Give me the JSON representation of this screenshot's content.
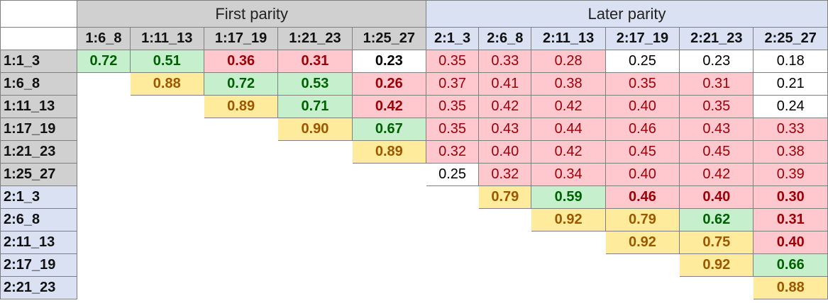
{
  "groups": {
    "first_label": "First parity",
    "later_label": "Later parity"
  },
  "columns": [
    {
      "label": "1:6_8",
      "group": "first"
    },
    {
      "label": "1:11_13",
      "group": "first"
    },
    {
      "label": "1:17_19",
      "group": "first"
    },
    {
      "label": "1:21_23",
      "group": "first"
    },
    {
      "label": "1:25_27",
      "group": "first"
    },
    {
      "label": "2:1_3",
      "group": "later"
    },
    {
      "label": "2:6_8",
      "group": "later"
    },
    {
      "label": "2:11_13",
      "group": "later"
    },
    {
      "label": "2:17_19",
      "group": "later"
    },
    {
      "label": "2:21_23",
      "group": "later"
    },
    {
      "label": "2:25_27",
      "group": "later"
    }
  ],
  "color_scale": {
    "green": "#c6efce",
    "yellow": "#ffeb9c",
    "red": "#ffc7ce",
    "white": "#ffffff"
  },
  "rows": [
    {
      "label": "1:1_3",
      "group": "first",
      "cells": [
        {
          "v": "0.72",
          "c": "green",
          "b": true
        },
        {
          "v": "0.51",
          "c": "green",
          "b": true
        },
        {
          "v": "0.36",
          "c": "red",
          "b": true
        },
        {
          "v": "0.31",
          "c": "red",
          "b": true
        },
        {
          "v": "0.23",
          "c": "white",
          "b": true
        },
        {
          "v": "0.35",
          "c": "red",
          "b": false
        },
        {
          "v": "0.33",
          "c": "red",
          "b": false
        },
        {
          "v": "0.28",
          "c": "red",
          "b": false
        },
        {
          "v": "0.25",
          "c": "white",
          "b": false
        },
        {
          "v": "0.23",
          "c": "white",
          "b": false
        },
        {
          "v": "0.18",
          "c": "white",
          "b": false
        }
      ]
    },
    {
      "label": "1:6_8",
      "group": "first",
      "cells": [
        null,
        {
          "v": "0.88",
          "c": "yellow",
          "b": true
        },
        {
          "v": "0.72",
          "c": "green",
          "b": true
        },
        {
          "v": "0.53",
          "c": "green",
          "b": true
        },
        {
          "v": "0.26",
          "c": "red",
          "b": true
        },
        {
          "v": "0.37",
          "c": "red",
          "b": false
        },
        {
          "v": "0.41",
          "c": "red",
          "b": false
        },
        {
          "v": "0.38",
          "c": "red",
          "b": false
        },
        {
          "v": "0.35",
          "c": "red",
          "b": false
        },
        {
          "v": "0.31",
          "c": "red",
          "b": false
        },
        {
          "v": "0.21",
          "c": "white",
          "b": false
        }
      ]
    },
    {
      "label": "1:11_13",
      "group": "first",
      "cells": [
        null,
        null,
        {
          "v": "0.89",
          "c": "yellow",
          "b": true
        },
        {
          "v": "0.71",
          "c": "green",
          "b": true
        },
        {
          "v": "0.42",
          "c": "red",
          "b": true
        },
        {
          "v": "0.35",
          "c": "red",
          "b": false
        },
        {
          "v": "0.42",
          "c": "red",
          "b": false
        },
        {
          "v": "0.42",
          "c": "red",
          "b": false
        },
        {
          "v": "0.40",
          "c": "red",
          "b": false
        },
        {
          "v": "0.35",
          "c": "red",
          "b": false
        },
        {
          "v": "0.24",
          "c": "white",
          "b": false
        }
      ]
    },
    {
      "label": "1:17_19",
      "group": "first",
      "cells": [
        null,
        null,
        null,
        {
          "v": "0.90",
          "c": "yellow",
          "b": true
        },
        {
          "v": "0.67",
          "c": "green",
          "b": true
        },
        {
          "v": "0.35",
          "c": "red",
          "b": false
        },
        {
          "v": "0.43",
          "c": "red",
          "b": false
        },
        {
          "v": "0.44",
          "c": "red",
          "b": false
        },
        {
          "v": "0.46",
          "c": "red",
          "b": false
        },
        {
          "v": "0.43",
          "c": "red",
          "b": false
        },
        {
          "v": "0.33",
          "c": "red",
          "b": false
        }
      ]
    },
    {
      "label": "1:21_23",
      "group": "first",
      "cells": [
        null,
        null,
        null,
        null,
        {
          "v": "0.89",
          "c": "yellow",
          "b": true
        },
        {
          "v": "0.32",
          "c": "red",
          "b": false
        },
        {
          "v": "0.40",
          "c": "red",
          "b": false
        },
        {
          "v": "0.42",
          "c": "red",
          "b": false
        },
        {
          "v": "0.45",
          "c": "red",
          "b": false
        },
        {
          "v": "0.45",
          "c": "red",
          "b": false
        },
        {
          "v": "0.38",
          "c": "red",
          "b": false
        }
      ]
    },
    {
      "label": "1:25_27",
      "group": "first",
      "cells": [
        null,
        null,
        null,
        null,
        null,
        {
          "v": "0.25",
          "c": "white",
          "b": false
        },
        {
          "v": "0.32",
          "c": "red",
          "b": false
        },
        {
          "v": "0.34",
          "c": "red",
          "b": false
        },
        {
          "v": "0.40",
          "c": "red",
          "b": false
        },
        {
          "v": "0.42",
          "c": "red",
          "b": false
        },
        {
          "v": "0.39",
          "c": "red",
          "b": false
        }
      ]
    },
    {
      "label": "2:1_3",
      "group": "later",
      "cells": [
        null,
        null,
        null,
        null,
        null,
        null,
        {
          "v": "0.79",
          "c": "yellow",
          "b": true
        },
        {
          "v": "0.59",
          "c": "green",
          "b": true
        },
        {
          "v": "0.46",
          "c": "red",
          "b": true
        },
        {
          "v": "0.40",
          "c": "red",
          "b": true
        },
        {
          "v": "0.30",
          "c": "red",
          "b": true
        }
      ]
    },
    {
      "label": "2:6_8",
      "group": "later",
      "cells": [
        null,
        null,
        null,
        null,
        null,
        null,
        null,
        {
          "v": "0.92",
          "c": "yellow",
          "b": true
        },
        {
          "v": "0.79",
          "c": "yellow",
          "b": true
        },
        {
          "v": "0.62",
          "c": "green",
          "b": true
        },
        {
          "v": "0.31",
          "c": "red",
          "b": true
        }
      ]
    },
    {
      "label": "2:11_13",
      "group": "later",
      "cells": [
        null,
        null,
        null,
        null,
        null,
        null,
        null,
        null,
        {
          "v": "0.92",
          "c": "yellow",
          "b": true
        },
        {
          "v": "0.75",
          "c": "yellow",
          "b": true
        },
        {
          "v": "0.40",
          "c": "red",
          "b": true
        }
      ]
    },
    {
      "label": "2:17_19",
      "group": "later",
      "cells": [
        null,
        null,
        null,
        null,
        null,
        null,
        null,
        null,
        null,
        {
          "v": "0.92",
          "c": "yellow",
          "b": true
        },
        {
          "v": "0.66",
          "c": "green",
          "b": true
        }
      ]
    },
    {
      "label": "2:21_23",
      "group": "later",
      "cells": [
        null,
        null,
        null,
        null,
        null,
        null,
        null,
        null,
        null,
        null,
        {
          "v": "0.88",
          "c": "yellow",
          "b": true
        }
      ]
    }
  ]
}
